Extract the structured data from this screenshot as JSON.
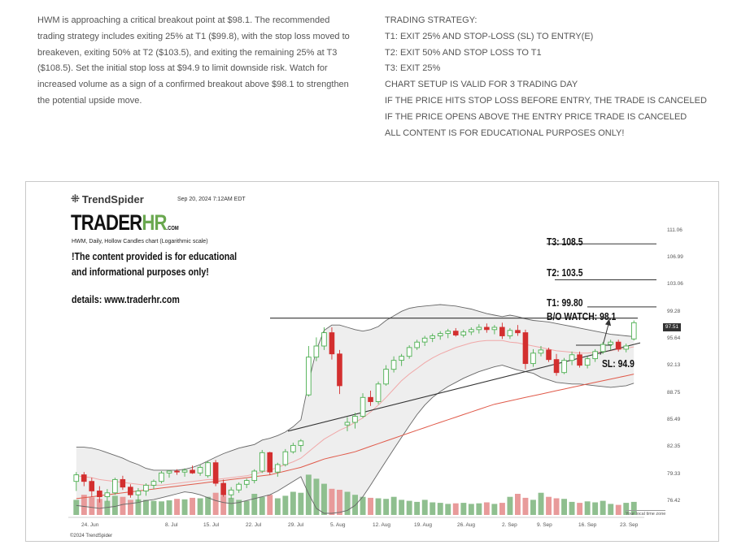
{
  "intro_text": "HWM is approaching a critical breakout point at $98.1. The recommended trading strategy includes exiting 25% at T1 ($99.8), with the stop loss moved to breakeven, exiting 50% at T2 ($103.5), and exiting the remaining 25% at T3 ($108.5). Set the initial stop loss at $94.9 to limit downside risk. Watch for increased volume as a sign of a confirmed breakout above $98.1 to strengthen the potential upside move.",
  "strategy": [
    "TRADING STRATEGY:",
    "T1: EXIT 25% AND STOP-LOSS (SL) TO ENTRY(E)",
    "T2: EXIT 50% AND STOP LOSS TO T1",
    "T3: EXIT 25%",
    "CHART SETUP IS VALID FOR 3 TRADING DAY",
    "IF THE PRICE HITS STOP LOSS BEFORE ENTRY, THE TRADE IS CANCELED",
    "IF THE PRICE OPENS ABOVE THE ENTRY PRICE TRADE IS CANCELED",
    "ALL CONTENT IS FOR EDUCATIONAL PURPOSES ONLY!"
  ],
  "chart_header": {
    "logo": "TrendSpider",
    "timestamp": "Sep 20, 2024 7:12AM EDT",
    "brand_main": "TRADER",
    "brand_hr": "HR",
    "brand_com": ".COM",
    "title": "HWM, Daily, Hollow Candles chart (Logarithmic scale)",
    "disclaimer_line1": "!The content provided is for educational",
    "disclaimer_line2": "and informational purposes only!",
    "details": "details: www.traderhr.com",
    "local_time": "Your local time zone",
    "copyright": "©2024 TrendSpider"
  },
  "annotations": {
    "t3": "T3: 108.5",
    "t2": "T2: 103.5",
    "t1": "T1: 99.80",
    "bo": "B/O WATCH: 98.1",
    "sl": "SL: 94.9",
    "last_price": "97.51"
  },
  "colors": {
    "bull": "#4caf50",
    "bear": "#d32f2f",
    "vol_bull": "#8fbf8f",
    "vol_bear": "#e89a9a",
    "band_fill": "#e8e8e8",
    "ma_fast": "#f0a8a8",
    "ma_slow": "#e05a4a"
  },
  "chart_data": {
    "type": "candlestick",
    "title": "HWM, Daily, Hollow Candles chart (Logarithmic scale)",
    "y_scale": "log",
    "ylim": [
      75.5,
      112.5
    ],
    "y_ticks": [
      "111.06",
      "106.99",
      "103.06",
      "99.28",
      "95.64",
      "92.13",
      "88.75",
      "85.49",
      "82.35",
      "79.33",
      "76.42"
    ],
    "x_ticks": [
      "24. Jun",
      "8. Jul",
      "15. Jul",
      "22. Jul",
      "29. Jul",
      "5. Aug",
      "12. Aug",
      "19. Aug",
      "26. Aug",
      "2. Sep",
      "9. Sep",
      "16. Sep",
      "23. Sep"
    ],
    "candles": [
      {
        "o": 78.8,
        "h": 79.8,
        "l": 77.8,
        "c": 79.5
      },
      {
        "o": 79.5,
        "h": 79.8,
        "l": 78.3,
        "c": 78.8
      },
      {
        "o": 78.8,
        "h": 79.2,
        "l": 77.2,
        "c": 77.8
      },
      {
        "o": 77.8,
        "h": 78.3,
        "l": 76.6,
        "c": 77.2
      },
      {
        "o": 77.2,
        "h": 78.0,
        "l": 76.7,
        "c": 77.6
      },
      {
        "o": 77.6,
        "h": 79.2,
        "l": 77.4,
        "c": 79.0
      },
      {
        "o": 79.0,
        "h": 79.4,
        "l": 77.9,
        "c": 78.2
      },
      {
        "o": 78.2,
        "h": 78.5,
        "l": 77.1,
        "c": 77.4
      },
      {
        "o": 77.4,
        "h": 78.1,
        "l": 76.6,
        "c": 77.8
      },
      {
        "o": 77.8,
        "h": 78.6,
        "l": 77.3,
        "c": 78.4
      },
      {
        "o": 78.4,
        "h": 79.0,
        "l": 78.0,
        "c": 78.8
      },
      {
        "o": 78.8,
        "h": 79.9,
        "l": 78.6,
        "c": 79.7
      },
      {
        "o": 79.7,
        "h": 80.0,
        "l": 79.2,
        "c": 79.9
      },
      {
        "o": 79.9,
        "h": 80.1,
        "l": 79.5,
        "c": 79.8
      },
      {
        "o": 79.8,
        "h": 80.2,
        "l": 79.3,
        "c": 80.0
      },
      {
        "o": 80.0,
        "h": 80.5,
        "l": 79.6,
        "c": 79.7
      },
      {
        "o": 79.7,
        "h": 80.6,
        "l": 79.4,
        "c": 80.3
      },
      {
        "o": 79.4,
        "h": 81.0,
        "l": 79.2,
        "c": 80.8
      },
      {
        "o": 80.8,
        "h": 81.1,
        "l": 78.3,
        "c": 78.6
      },
      {
        "o": 78.6,
        "h": 79.0,
        "l": 77.2,
        "c": 77.4
      },
      {
        "o": 77.4,
        "h": 78.2,
        "l": 77.0,
        "c": 77.9
      },
      {
        "o": 77.9,
        "h": 78.7,
        "l": 77.6,
        "c": 78.5
      },
      {
        "o": 78.5,
        "h": 79.1,
        "l": 78.1,
        "c": 78.9
      },
      {
        "o": 78.9,
        "h": 80.1,
        "l": 78.6,
        "c": 79.9
      },
      {
        "o": 79.9,
        "h": 82.2,
        "l": 79.7,
        "c": 81.9
      },
      {
        "o": 81.9,
        "h": 82.0,
        "l": 79.5,
        "c": 79.8
      },
      {
        "o": 79.8,
        "h": 80.8,
        "l": 79.3,
        "c": 80.6
      },
      {
        "o": 80.6,
        "h": 82.3,
        "l": 80.4,
        "c": 82.0
      },
      {
        "o": 82.0,
        "h": 83.0,
        "l": 81.8,
        "c": 82.7
      },
      {
        "o": 82.7,
        "h": 83.4,
        "l": 82.0,
        "c": 83.2
      },
      {
        "o": 88.5,
        "h": 94.5,
        "l": 88.3,
        "c": 93.1
      },
      {
        "o": 93.1,
        "h": 95.6,
        "l": 92.6,
        "c": 94.5
      },
      {
        "o": 94.5,
        "h": 96.9,
        "l": 94.0,
        "c": 96.2
      },
      {
        "o": 96.2,
        "h": 96.9,
        "l": 92.8,
        "c": 93.5
      },
      {
        "o": 93.5,
        "h": 94.0,
        "l": 88.6,
        "c": 89.6
      },
      {
        "o": 85.0,
        "h": 85.9,
        "l": 84.3,
        "c": 85.3
      },
      {
        "o": 85.3,
        "h": 86.4,
        "l": 84.6,
        "c": 86.0
      },
      {
        "o": 86.0,
        "h": 88.7,
        "l": 85.8,
        "c": 88.2
      },
      {
        "o": 88.2,
        "h": 89.0,
        "l": 87.2,
        "c": 87.7
      },
      {
        "o": 87.7,
        "h": 90.1,
        "l": 87.4,
        "c": 89.8
      },
      {
        "o": 89.8,
        "h": 92.1,
        "l": 89.6,
        "c": 91.6
      },
      {
        "o": 91.6,
        "h": 93.2,
        "l": 91.2,
        "c": 92.7
      },
      {
        "o": 92.7,
        "h": 93.5,
        "l": 92.0,
        "c": 93.2
      },
      {
        "o": 93.2,
        "h": 94.6,
        "l": 92.9,
        "c": 94.3
      },
      {
        "o": 94.3,
        "h": 95.3,
        "l": 94.0,
        "c": 95.0
      },
      {
        "o": 95.0,
        "h": 95.8,
        "l": 94.5,
        "c": 95.5
      },
      {
        "o": 95.5,
        "h": 96.1,
        "l": 95.0,
        "c": 95.8
      },
      {
        "o": 95.8,
        "h": 96.4,
        "l": 95.3,
        "c": 96.1
      },
      {
        "o": 96.1,
        "h": 96.7,
        "l": 95.5,
        "c": 96.4
      },
      {
        "o": 96.4,
        "h": 96.8,
        "l": 95.7,
        "c": 95.9
      },
      {
        "o": 95.9,
        "h": 96.6,
        "l": 95.6,
        "c": 96.3
      },
      {
        "o": 96.3,
        "h": 96.9,
        "l": 95.9,
        "c": 96.6
      },
      {
        "o": 96.6,
        "h": 97.3,
        "l": 96.1,
        "c": 96.9
      },
      {
        "o": 96.9,
        "h": 97.4,
        "l": 96.2,
        "c": 96.6
      },
      {
        "o": 96.6,
        "h": 97.2,
        "l": 96.0,
        "c": 96.9
      },
      {
        "o": 96.9,
        "h": 97.5,
        "l": 95.4,
        "c": 95.8
      },
      {
        "o": 95.8,
        "h": 96.8,
        "l": 95.4,
        "c": 96.5
      },
      {
        "o": 96.5,
        "h": 97.2,
        "l": 95.8,
        "c": 96.2
      },
      {
        "o": 96.2,
        "h": 96.6,
        "l": 91.6,
        "c": 92.3
      },
      {
        "o": 92.3,
        "h": 94.1,
        "l": 91.9,
        "c": 93.6
      },
      {
        "o": 93.6,
        "h": 94.5,
        "l": 93.2,
        "c": 94.0
      },
      {
        "o": 94.0,
        "h": 94.3,
        "l": 92.5,
        "c": 92.8
      },
      {
        "o": 92.8,
        "h": 93.5,
        "l": 90.8,
        "c": 91.2
      },
      {
        "o": 91.2,
        "h": 93.0,
        "l": 91.0,
        "c": 92.7
      },
      {
        "o": 92.7,
        "h": 93.8,
        "l": 92.1,
        "c": 93.4
      },
      {
        "o": 93.4,
        "h": 93.8,
        "l": 91.8,
        "c": 92.1
      },
      {
        "o": 92.1,
        "h": 93.2,
        "l": 91.7,
        "c": 92.9
      },
      {
        "o": 92.9,
        "h": 94.1,
        "l": 92.5,
        "c": 93.8
      },
      {
        "o": 93.8,
        "h": 95.0,
        "l": 93.5,
        "c": 94.7
      },
      {
        "o": 94.7,
        "h": 95.3,
        "l": 94.0,
        "c": 95.0
      },
      {
        "o": 95.0,
        "h": 95.3,
        "l": 93.8,
        "c": 94.1
      },
      {
        "o": 94.1,
        "h": 94.8,
        "l": 93.7,
        "c": 94.5
      },
      {
        "o": 95.4,
        "h": 97.8,
        "l": 95.2,
        "c": 97.5
      }
    ],
    "volume": [
      0.3,
      0.4,
      0.35,
      0.32,
      0.28,
      0.38,
      0.36,
      0.3,
      0.31,
      0.3,
      0.28,
      0.27,
      0.29,
      0.32,
      0.31,
      0.34,
      0.33,
      0.36,
      0.44,
      0.38,
      0.34,
      0.3,
      0.28,
      0.42,
      0.36,
      0.4,
      0.33,
      0.38,
      0.46,
      0.44,
      0.8,
      0.72,
      0.62,
      0.52,
      0.5,
      0.46,
      0.4,
      0.36,
      0.34,
      0.33,
      0.32,
      0.36,
      0.3,
      0.28,
      0.26,
      0.3,
      0.25,
      0.24,
      0.22,
      0.23,
      0.24,
      0.22,
      0.23,
      0.25,
      0.22,
      0.24,
      0.36,
      0.42,
      0.34,
      0.3,
      0.44,
      0.36,
      0.33,
      0.32,
      0.26,
      0.24,
      0.27,
      0.25,
      0.28,
      0.22,
      0.2,
      0.24,
      0.26
    ],
    "bands": {
      "upper": [
        82.5,
        82.5,
        82.4,
        82.2,
        81.9,
        81.6,
        81.3,
        80.9,
        80.6,
        80.2,
        80.0,
        80.0,
        80.0,
        80.0,
        80.1,
        80.3,
        80.6,
        81.0,
        81.4,
        81.8,
        82.1,
        82.4,
        82.6,
        82.8,
        83.3,
        83.5,
        83.8,
        84.2,
        84.8,
        85.6,
        90.0,
        94.0,
        96.5,
        97.2,
        97.2,
        96.9,
        96.6,
        96.4,
        96.6,
        97.0,
        97.8,
        98.4,
        99.0,
        99.4,
        99.6,
        99.7,
        99.8,
        99.9,
        99.8,
        99.7,
        99.5,
        99.3,
        99.0,
        98.7,
        98.5,
        98.3,
        98.5,
        98.3,
        98.0,
        97.8,
        97.7,
        97.6,
        97.4,
        97.2,
        97.0,
        96.8,
        96.6,
        96.4,
        96.2,
        96.0,
        95.9,
        95.8,
        95.7
      ],
      "lower": [
        76.3,
        76.2,
        76.1,
        76.0,
        76.1,
        76.2,
        76.4,
        76.5,
        76.6,
        76.8,
        76.9,
        77.1,
        77.3,
        77.5,
        77.7,
        77.6,
        77.4,
        77.1,
        76.8,
        76.6,
        76.5,
        76.6,
        76.8,
        77.0,
        77.2,
        77.4,
        77.8,
        78.3,
        78.8,
        79.3,
        77.5,
        76.0,
        75.5,
        75.5,
        75.6,
        75.8,
        76.3,
        77.2,
        78.4,
        79.7,
        81.0,
        82.3,
        83.6,
        84.9,
        86.2,
        87.3,
        88.2,
        88.9,
        89.5,
        90.0,
        90.5,
        90.9,
        91.3,
        91.6,
        91.9,
        92.1,
        91.8,
        91.5,
        91.3,
        91.1,
        90.6,
        90.3,
        90.0,
        89.9,
        89.8,
        89.8,
        89.7,
        89.6,
        89.5,
        89.4,
        89.5,
        89.6,
        89.9
      ],
      "ma20": [
        79.4,
        79.3,
        79.2,
        79.0,
        78.9,
        78.8,
        78.7,
        78.6,
        78.5,
        78.4,
        78.4,
        78.4,
        78.5,
        78.6,
        78.7,
        78.8,
        78.9,
        79.0,
        79.0,
        79.1,
        79.2,
        79.3,
        79.4,
        79.6,
        79.8,
        80.0,
        80.3,
        80.6,
        80.9,
        81.3,
        82.0,
        82.7,
        83.4,
        83.9,
        84.4,
        84.8,
        85.3,
        85.8,
        86.5,
        87.3,
        88.2,
        89.2,
        90.2,
        91.0,
        91.7,
        92.4,
        93.0,
        93.5,
        93.9,
        94.3,
        94.6,
        94.9,
        95.1,
        95.2,
        95.2,
        95.2,
        95.0,
        94.9,
        94.7,
        94.5,
        94.3,
        94.1,
        93.9,
        93.8,
        93.7,
        93.6,
        93.6,
        93.7,
        93.8,
        93.9,
        94.1,
        94.2,
        94.4
      ],
      "ma50": [
        77.0,
        77.1,
        77.2,
        77.3,
        77.4,
        77.5,
        77.6,
        77.7,
        77.8,
        77.9,
        78.0,
        78.1,
        78.2,
        78.3,
        78.4,
        78.5,
        78.6,
        78.7,
        78.8,
        78.9,
        79.0,
        79.1,
        79.2,
        79.3,
        79.4,
        79.5,
        79.7,
        79.9,
        80.1,
        80.3,
        80.6,
        80.9,
        81.2,
        81.4,
        81.6,
        81.8,
        82.0,
        82.3,
        82.6,
        82.9,
        83.2,
        83.5,
        83.8,
        84.1,
        84.4,
        84.7,
        85.0,
        85.3,
        85.6,
        85.9,
        86.2,
        86.5,
        86.8,
        87.1,
        87.4,
        87.6,
        87.8,
        88.0,
        88.2,
        88.4,
        88.6,
        88.8,
        89.0,
        89.2,
        89.4,
        89.6,
        89.8,
        90.0,
        90.2,
        90.4,
        90.6,
        90.8,
        91.0
      ]
    },
    "levels": {
      "t3": 108.5,
      "t2": 103.5,
      "t1": 99.8,
      "breakout": 98.1,
      "stop_loss": 94.9
    }
  }
}
